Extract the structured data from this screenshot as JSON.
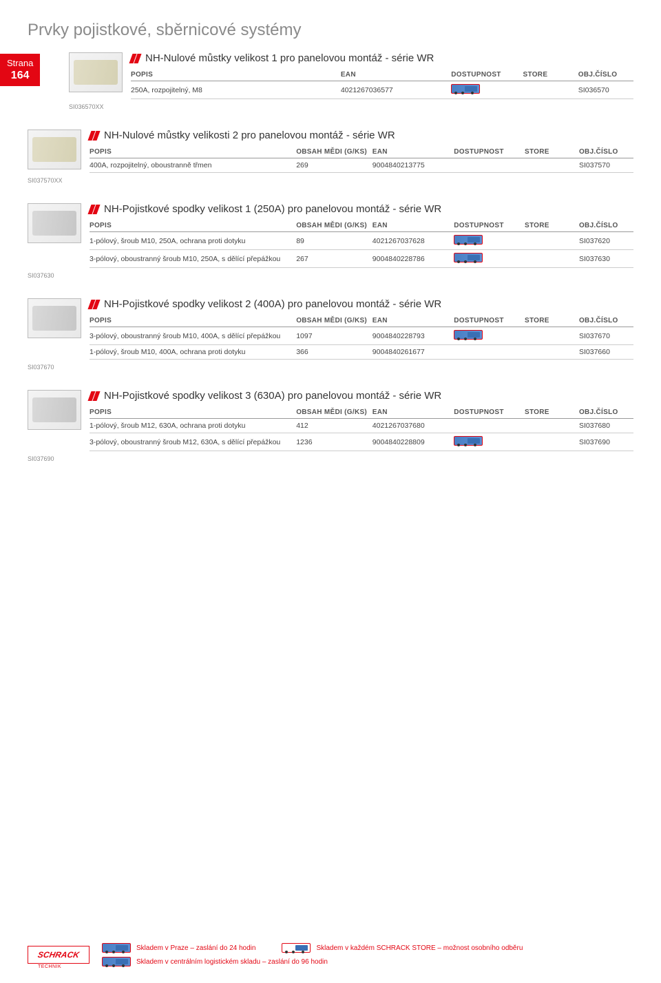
{
  "page": {
    "title": "Prvky pojistkové, sběrnicové systémy",
    "badge_label": "Strana",
    "badge_number": "164"
  },
  "columns": {
    "popis": "POPIS",
    "obsah": "OBSAH MĚDI (G/KS)",
    "ean": "EAN",
    "dostupnost": "DOSTUPNOST",
    "store": "STORE",
    "obj": "OBJ.ČÍSLO"
  },
  "sections": [
    {
      "title": "NH-Nulové můstky velikost 1 pro panelovou montáž - série WR",
      "has_obsah": false,
      "caption": "SI036570XX",
      "rows": [
        {
          "popis": "250A, rozpojitelný, M8",
          "obsah": "",
          "ean": "4021267036577",
          "truck": true,
          "obj": "SI036570"
        }
      ]
    },
    {
      "title": "NH-Nulové můstky velikosti 2 pro panelovou montáž - série WR",
      "has_obsah": true,
      "caption": "SI037570XX",
      "rows": [
        {
          "popis": "400A, rozpojitelný, oboustranně třmen",
          "obsah": "269",
          "ean": "9004840213775",
          "truck": false,
          "obj": "SI037570"
        }
      ]
    },
    {
      "title": "NH-Pojistkové spodky velikost 1 (250A) pro panelovou montáž - série WR",
      "has_obsah": true,
      "caption": "SI037630",
      "rows": [
        {
          "popis": "1-pólový, šroub M10, 250A, ochrana proti dotyku",
          "obsah": "89",
          "ean": "4021267037628",
          "truck": true,
          "obj": "SI037620"
        },
        {
          "popis": "3-pólový, oboustranný šroub M10, 250A, s dělící přepážkou",
          "obsah": "267",
          "ean": "9004840228786",
          "truck": true,
          "obj": "SI037630"
        }
      ]
    },
    {
      "title": "NH-Pojistkové spodky velikost 2 (400A) pro panelovou montáž - série WR",
      "has_obsah": true,
      "caption": "SI037670",
      "rows": [
        {
          "popis": "3-pólový, oboustranný šroub M10, 400A, s dělící přepážkou",
          "obsah": "1097",
          "ean": "9004840228793",
          "truck": true,
          "obj": "SI037670"
        },
        {
          "popis": "1-pólový, šroub M10, 400A, ochrana proti dotyku",
          "obsah": "366",
          "ean": "9004840261677",
          "truck": false,
          "obj": "SI037660"
        }
      ]
    },
    {
      "title": "NH-Pojistkové spodky velikost 3 (630A) pro panelovou montáž - série WR",
      "has_obsah": true,
      "caption": "SI037690",
      "rows": [
        {
          "popis": "1-pólový, šroub M12, 630A, ochrana proti dotyku",
          "obsah": "412",
          "ean": "4021267037680",
          "truck": false,
          "obj": "SI037680"
        },
        {
          "popis": "3-pólový, oboustranný šroub M12, 630A, s dělící přepážkou",
          "obsah": "1236",
          "ean": "9004840228809",
          "truck": true,
          "obj": "SI037690"
        }
      ]
    }
  ],
  "footer": {
    "logo": "SCHRACK",
    "line1a": "Skladem v Praze – zaslání do 24 hodin",
    "line1b": "Skladem v každém SCHRACK STORE – možnost osobního odběru",
    "line2": "Skladem v centrálním logistickém skladu – zaslání do 96 hodin"
  },
  "colors": {
    "accent": "#e30613",
    "text": "#333333",
    "muted": "#888888",
    "border": "#cccccc"
  }
}
